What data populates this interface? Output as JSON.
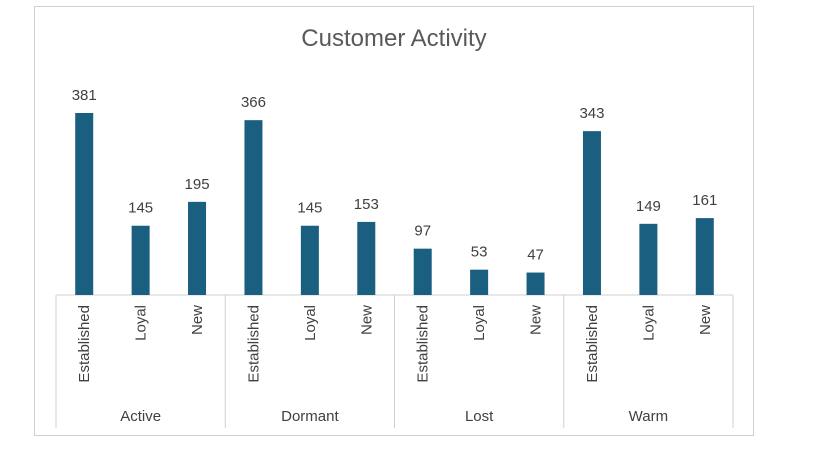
{
  "chart_data": {
    "type": "bar",
    "title": "Customer Activity",
    "xlabel": "",
    "ylabel": "",
    "groups": [
      {
        "label": "Active",
        "categories": [
          "Established",
          "Loyal",
          "New"
        ],
        "values": [
          381,
          145,
          195
        ]
      },
      {
        "label": "Dormant",
        "categories": [
          "Established",
          "Loyal",
          "New"
        ],
        "values": [
          366,
          145,
          153
        ]
      },
      {
        "label": "Lost",
        "categories": [
          "Established",
          "Loyal",
          "New"
        ],
        "values": [
          97,
          53,
          47
        ]
      },
      {
        "label": "Warm",
        "categories": [
          "Established",
          "Loyal",
          "New"
        ],
        "values": [
          343,
          149,
          161
        ]
      }
    ],
    "ylim": [
      0,
      381
    ],
    "grid": false,
    "legend": "none",
    "bar_color": "#1a5e80"
  }
}
